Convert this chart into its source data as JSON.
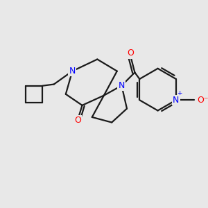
{
  "background_color": "#e8e8e8",
  "bond_color": "#1a1a1a",
  "nitrogen_color": "#0000ff",
  "oxygen_color": "#ff0000",
  "line_width": 1.6,
  "fig_size": [
    3.0,
    3.0
  ],
  "dpi": 100,
  "xlim": [
    0,
    300
  ],
  "ylim": [
    0,
    300
  ]
}
